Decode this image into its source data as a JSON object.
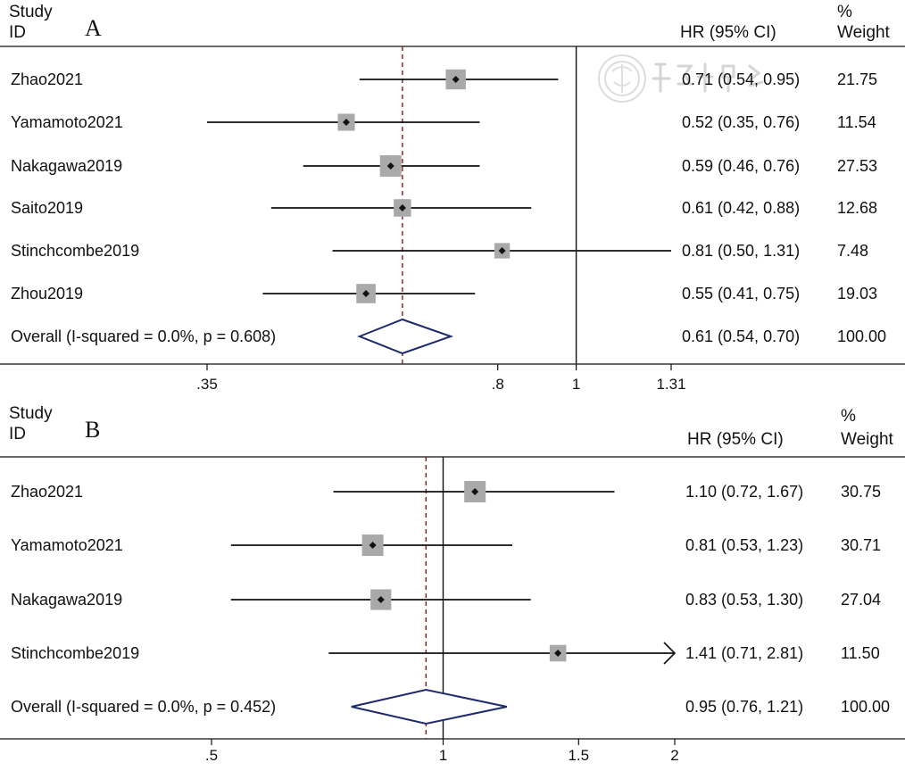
{
  "headers": {
    "study": "Study",
    "id": "ID",
    "hr": "HR (95% CI)",
    "pct": "%",
    "weight": "Weight"
  },
  "chart_data": [
    {
      "panel": "A",
      "type": "forest",
      "scale": "log",
      "xticks": [
        0.35,
        0.8,
        1,
        1.31
      ],
      "xtick_labels": [
        ".35",
        ".8",
        "1",
        "1.31"
      ],
      "null_line": 1,
      "pooled_line": 0.61,
      "studies": [
        {
          "id": "Zhao2021",
          "hr": 0.71,
          "lo": 0.54,
          "hi": 0.95,
          "weight": 21.75,
          "label": "0.71 (0.54, 0.95)",
          "weight_label": "21.75"
        },
        {
          "id": "Yamamoto2021",
          "hr": 0.52,
          "lo": 0.35,
          "hi": 0.76,
          "weight": 11.54,
          "label": "0.52 (0.35, 0.76)",
          "weight_label": "11.54"
        },
        {
          "id": "Nakagawa2019",
          "hr": 0.59,
          "lo": 0.46,
          "hi": 0.76,
          "weight": 27.53,
          "label": "0.59 (0.46, 0.76)",
          "weight_label": "27.53"
        },
        {
          "id": "Saito2019",
          "hr": 0.61,
          "lo": 0.42,
          "hi": 0.88,
          "weight": 12.68,
          "label": "0.61 (0.42, 0.88)",
          "weight_label": "12.68"
        },
        {
          "id": "Stinchcombe2019",
          "hr": 0.81,
          "lo": 0.5,
          "hi": 1.31,
          "weight": 7.48,
          "label": "0.81 (0.50, 1.31)",
          "weight_label": "7.48"
        },
        {
          "id": "Zhou2019",
          "hr": 0.55,
          "lo": 0.41,
          "hi": 0.75,
          "weight": 19.03,
          "label": "0.55 (0.41, 0.75)",
          "weight_label": "19.03"
        }
      ],
      "overall": {
        "label_text": "Overall  (I-squared = 0.0%, p = 0.608)",
        "hr": 0.61,
        "lo": 0.54,
        "hi": 0.7,
        "label": "0.61 (0.54, 0.70)",
        "weight_label": "100.00"
      }
    },
    {
      "panel": "B",
      "type": "forest",
      "scale": "log",
      "xticks": [
        0.5,
        1,
        1.5,
        2
      ],
      "xtick_labels": [
        ".5",
        "1",
        "1.5",
        "2"
      ],
      "null_line": 1,
      "pooled_line": 0.95,
      "studies": [
        {
          "id": "Zhao2021",
          "hr": 1.1,
          "lo": 0.72,
          "hi": 1.67,
          "weight": 30.75,
          "label": "1.10 (0.72, 1.67)",
          "weight_label": "30.75"
        },
        {
          "id": "Yamamoto2021",
          "hr": 0.81,
          "lo": 0.53,
          "hi": 1.23,
          "weight": 30.71,
          "label": "0.81 (0.53, 1.23)",
          "weight_label": "30.71"
        },
        {
          "id": "Nakagawa2019",
          "hr": 0.83,
          "lo": 0.53,
          "hi": 1.3,
          "weight": 27.04,
          "label": "0.83 (0.53, 1.30)",
          "weight_label": "27.04"
        },
        {
          "id": "Stinchcombe2019",
          "hr": 1.41,
          "lo": 0.71,
          "hi": 2.81,
          "weight": 11.5,
          "label": "1.41 (0.71, 2.81)",
          "weight_label": "11.50",
          "arrow_right": true
        }
      ],
      "overall": {
        "label_text": "Overall  (I-squared = 0.0%, p = 0.452)",
        "hr": 0.95,
        "lo": 0.76,
        "hi": 1.21,
        "label": "0.95 (0.76, 1.21)",
        "weight_label": "100.00"
      }
    }
  ],
  "colors": {
    "ci_line": "#111111",
    "box": "#a9a9a9",
    "point": "#111111",
    "null_line": "#111111",
    "pooled_line": "#8b1a1a",
    "diamond": "#1f2a6e",
    "axis": "#111111"
  }
}
